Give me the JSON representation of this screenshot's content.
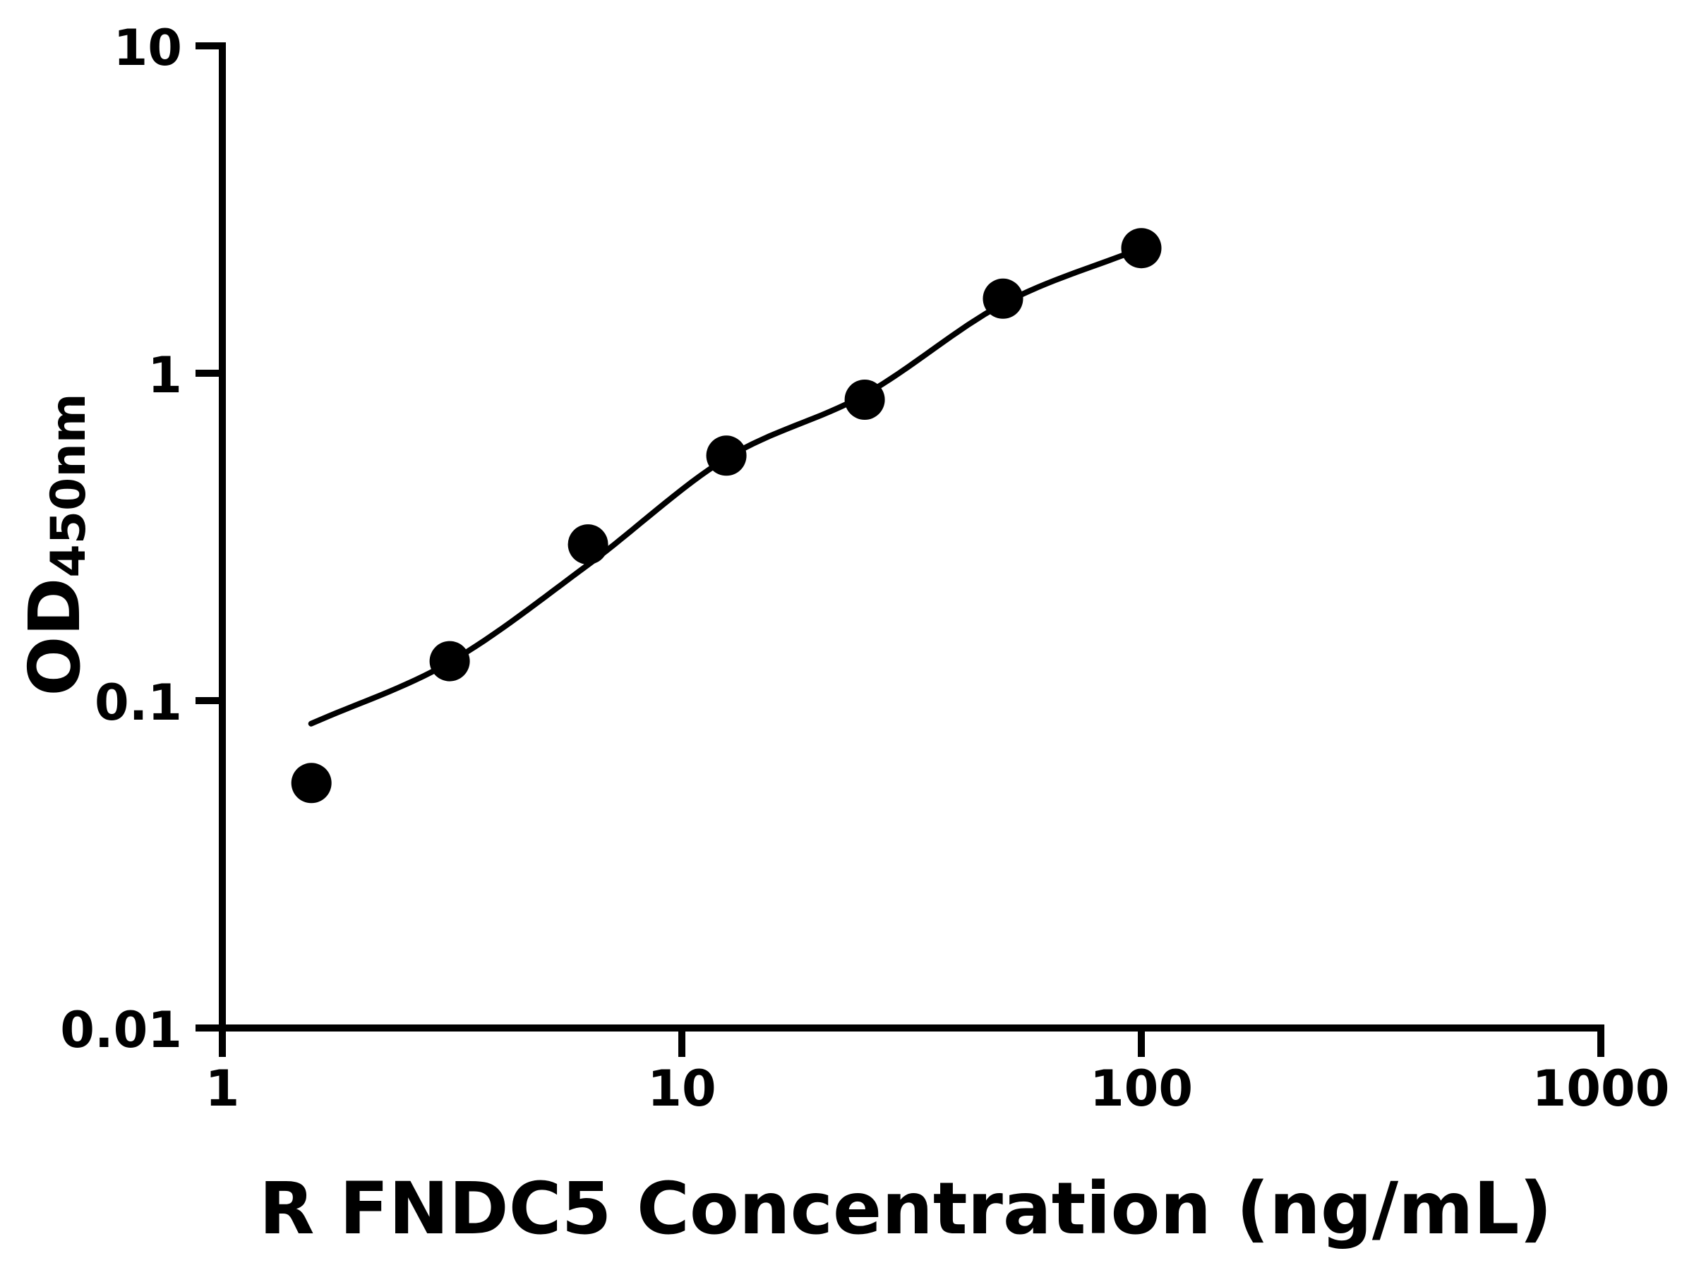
{
  "chart_data": {
    "type": "scatter",
    "title": "",
    "xlabel": "R FNDC5 Concentration (ng/mL)",
    "ylabel": "OD450nm",
    "ylabel_main": "OD",
    "ylabel_sub": "450nm",
    "x_scale": "log",
    "y_scale": "log",
    "xlim": [
      1,
      1000
    ],
    "ylim": [
      0.01,
      10
    ],
    "grid": "off",
    "legend": "none",
    "x_ticks": [
      {
        "value": 1,
        "label": "1"
      },
      {
        "value": 10,
        "label": "10"
      },
      {
        "value": 100,
        "label": "100"
      },
      {
        "value": 1000,
        "label": "1000"
      }
    ],
    "y_ticks": [
      {
        "value": 0.01,
        "label": "0.01"
      },
      {
        "value": 0.1,
        "label": "0.1"
      },
      {
        "value": 1,
        "label": "1"
      },
      {
        "value": 10,
        "label": "10"
      }
    ],
    "points": [
      {
        "x": 1.5625,
        "y": 0.056
      },
      {
        "x": 3.125,
        "y": 0.132
      },
      {
        "x": 6.25,
        "y": 0.3
      },
      {
        "x": 12.5,
        "y": 0.56
      },
      {
        "x": 25,
        "y": 0.83
      },
      {
        "x": 50,
        "y": 1.69
      },
      {
        "x": 100,
        "y": 2.41
      }
    ],
    "fit_curve": [
      {
        "x": 1.56,
        "y": 0.085
      },
      {
        "x": 3.125,
        "y": 0.131
      },
      {
        "x": 6.25,
        "y": 0.26
      },
      {
        "x": 12.5,
        "y": 0.55
      },
      {
        "x": 25,
        "y": 0.86
      },
      {
        "x": 50,
        "y": 1.63
      },
      {
        "x": 100,
        "y": 2.41
      }
    ],
    "colors": {
      "marker": "#000000",
      "line": "#000000",
      "axis": "#000000",
      "background": "#ffffff"
    }
  }
}
